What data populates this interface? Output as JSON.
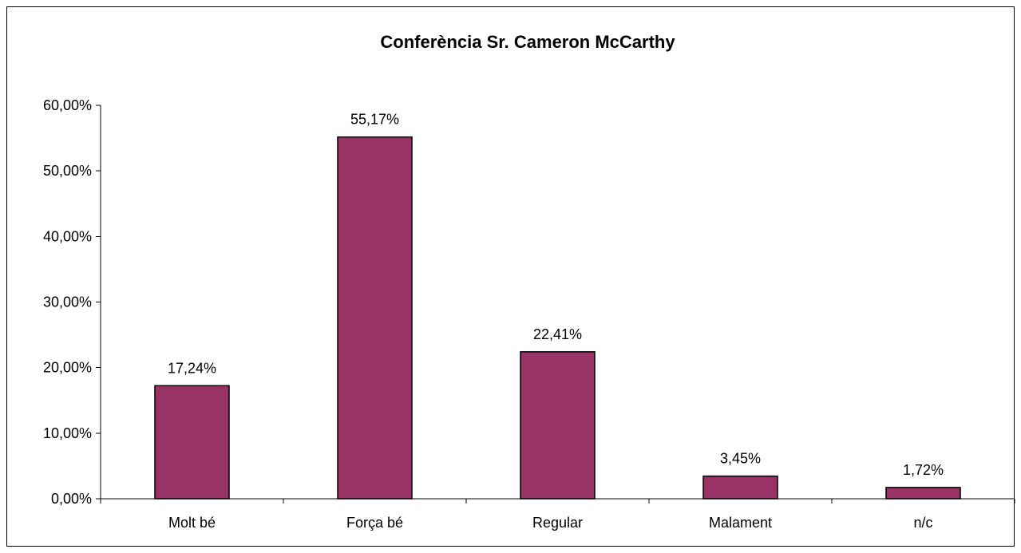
{
  "chart_data": {
    "type": "bar",
    "title": "Conferència Sr. Cameron McCarthy",
    "xlabel": "",
    "ylabel": "",
    "categories": [
      "Molt bé",
      "Força bé",
      "Regular",
      "Malament",
      "n/c"
    ],
    "values": [
      17.24,
      55.17,
      22.41,
      3.45,
      1.72
    ],
    "data_labels": [
      "17,24%",
      "55,17%",
      "22,41%",
      "3,45%",
      "1,72%"
    ],
    "ylim": [
      0,
      60
    ],
    "y_ticks": [
      0,
      10,
      20,
      30,
      40,
      50,
      60
    ],
    "y_tick_labels": [
      "0,00%",
      "10,00%",
      "20,00%",
      "30,00%",
      "40,00%",
      "50,00%",
      "60,00%"
    ],
    "grid": false,
    "legend": "none",
    "bar_color": "#993366"
  }
}
